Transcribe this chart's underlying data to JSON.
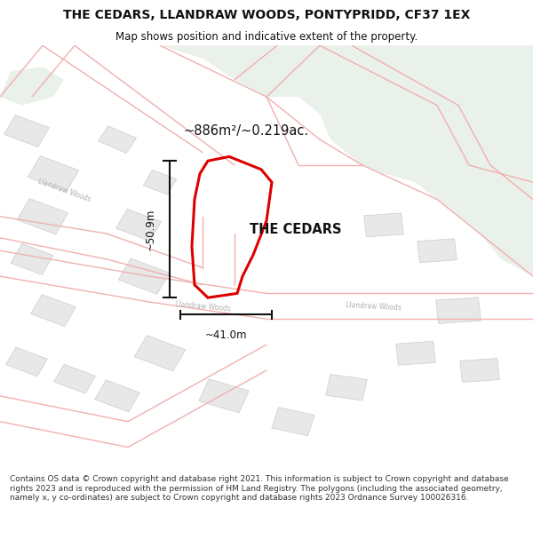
{
  "title_line1": "THE CEDARS, LLANDRAW WOODS, PONTYPRIDD, CF37 1EX",
  "title_line2": "Map shows position and indicative extent of the property.",
  "property_label": "THE CEDARS",
  "area_label": "~886m²/~0.219ac.",
  "width_label": "~41.0m",
  "height_label": "~50.9m",
  "footer_text": "Contains OS data © Crown copyright and database right 2021. This information is subject to Crown copyright and database rights 2023 and is reproduced with the permission of HM Land Registry. The polygons (including the associated geometry, namely x, y co-ordinates) are subject to Crown copyright and database rights 2023 Ordnance Survey 100026316.",
  "map_bg": "#fafaf8",
  "green_area_color": "#eaf0ea",
  "road_line_color": "#f0b0b0",
  "building_fill": "#e8e8e8",
  "building_edge": "#cccccc",
  "property_outline_color": "#dd0000",
  "dim_line_color": "#111111",
  "road_text_color": "#b0b0b0",
  "title_color": "#111111",
  "label_color": "#111111",
  "footer_color": "#333333"
}
